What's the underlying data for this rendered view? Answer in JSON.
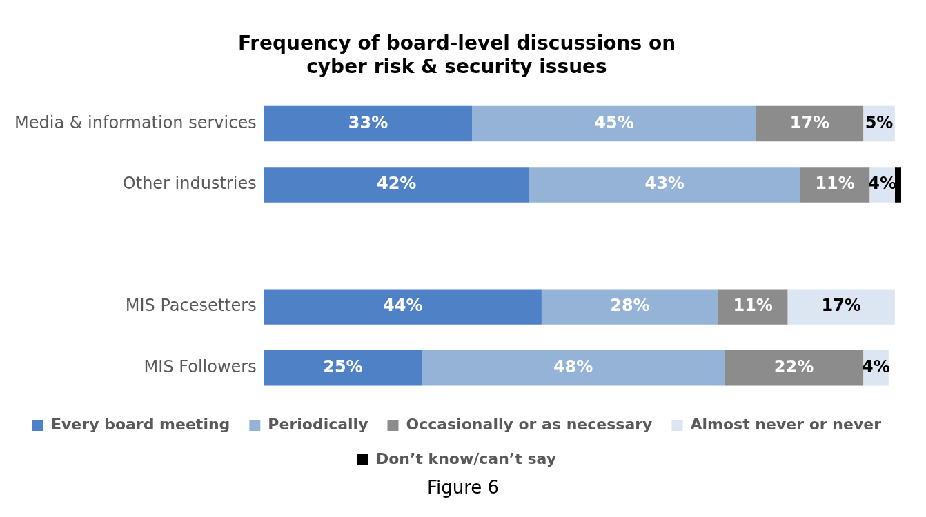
{
  "chart_data": {
    "type": "bar",
    "orientation": "horizontal",
    "stacked": true,
    "title": "Frequency of board-level discussions on\ncyber risk & security issues",
    "categories": [
      "Media & information services",
      "Other industries",
      null,
      "MIS Pacesetters",
      "MIS Followers"
    ],
    "series": [
      {
        "name": "Every board meeting",
        "color": "#4f81c7",
        "values": [
          33,
          42,
          null,
          44,
          25
        ],
        "value_labels": [
          "33%",
          "42%",
          null,
          "44%",
          "25%"
        ]
      },
      {
        "name": "Periodically",
        "color": "#95b3d7",
        "values": [
          45,
          43,
          null,
          28,
          48
        ],
        "value_labels": [
          "45%",
          "43%",
          null,
          "28%",
          "48%"
        ]
      },
      {
        "name": "Occasionally or as necessary",
        "color": "#8c8c8c",
        "values": [
          17,
          11,
          null,
          11,
          22
        ],
        "value_labels": [
          "17%",
          "11%",
          null,
          "11%",
          "22%"
        ]
      },
      {
        "name": "Almost never or never",
        "color": "#dce6f2",
        "values": [
          5,
          4,
          null,
          17,
          4
        ],
        "value_labels": [
          "5%",
          "4%",
          null,
          "17%",
          "4%"
        ]
      },
      {
        "name": "Don’t know/can’t say",
        "color": "#000000",
        "values": [
          0,
          1,
          null,
          0,
          0
        ],
        "value_labels": [
          null,
          null,
          null,
          null,
          null
        ]
      }
    ],
    "legend": "bottom",
    "grid": false,
    "annotations": [
      "Figure 6"
    ]
  }
}
